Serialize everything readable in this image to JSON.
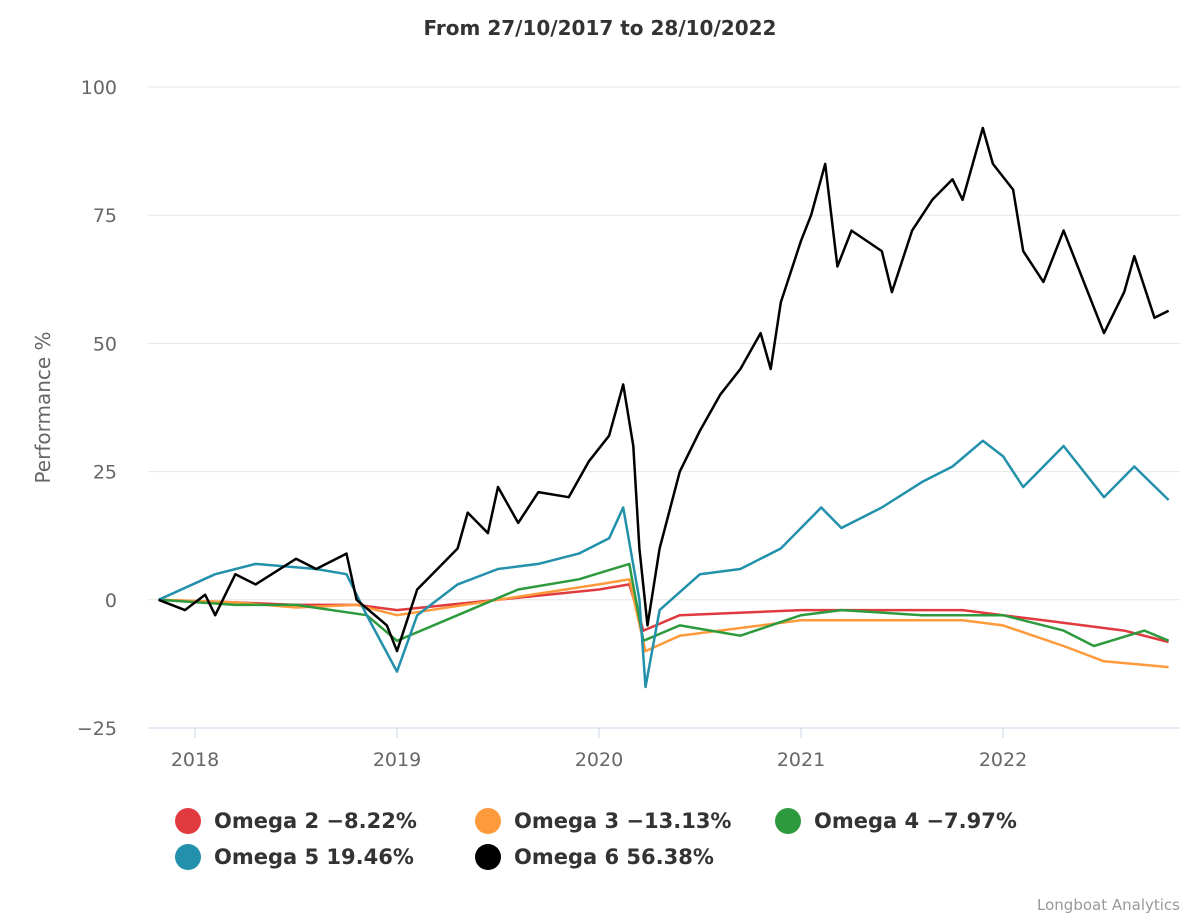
{
  "chart_data": {
    "type": "line",
    "title": "From 27/10/2017 to 28/10/2022",
    "xlabel": "",
    "ylabel": "Performance %",
    "xlim": [
      2017.82,
      2022.82
    ],
    "ylim": [
      -25,
      100
    ],
    "yticks": [
      -25,
      0,
      25,
      50,
      75,
      100
    ],
    "ytick_labels": [
      "−25",
      "0",
      "25",
      "50",
      "75",
      "100"
    ],
    "xticks": [
      2018,
      2019,
      2020,
      2021,
      2022
    ],
    "xtick_labels": [
      "2018",
      "2019",
      "2020",
      "2021",
      "2022"
    ],
    "grid": true,
    "legend_position": "bottom",
    "series": [
      {
        "name": "Omega 2",
        "label": "Omega 2 −8.22%",
        "color": "#e03a3e",
        "points": [
          [
            2017.82,
            0
          ],
          [
            2018.2,
            -0.5
          ],
          [
            2018.5,
            -1
          ],
          [
            2018.8,
            -1
          ],
          [
            2019.0,
            -2
          ],
          [
            2019.5,
            0
          ],
          [
            2020.0,
            2
          ],
          [
            2020.15,
            3
          ],
          [
            2020.22,
            -6
          ],
          [
            2020.4,
            -3
          ],
          [
            2021.0,
            -2
          ],
          [
            2021.8,
            -2
          ],
          [
            2022.2,
            -4
          ],
          [
            2022.6,
            -6
          ],
          [
            2022.82,
            -8.22
          ]
        ]
      },
      {
        "name": "Omega 3",
        "label": "Omega 3 −13.13%",
        "color": "#ff9a3c",
        "points": [
          [
            2017.82,
            0
          ],
          [
            2018.2,
            -0.5
          ],
          [
            2018.5,
            -1.5
          ],
          [
            2018.8,
            -1
          ],
          [
            2019.0,
            -3
          ],
          [
            2019.5,
            0
          ],
          [
            2020.0,
            3
          ],
          [
            2020.15,
            4
          ],
          [
            2020.23,
            -10
          ],
          [
            2020.4,
            -7
          ],
          [
            2021.0,
            -4
          ],
          [
            2021.8,
            -4
          ],
          [
            2022.0,
            -5
          ],
          [
            2022.3,
            -9
          ],
          [
            2022.5,
            -12
          ],
          [
            2022.82,
            -13.13
          ]
        ]
      },
      {
        "name": "Omega 4",
        "label": "Omega 4 −7.97%",
        "color": "#2e9a3e",
        "points": [
          [
            2017.82,
            0
          ],
          [
            2018.2,
            -1
          ],
          [
            2018.5,
            -1
          ],
          [
            2018.85,
            -3
          ],
          [
            2019.0,
            -8
          ],
          [
            2019.3,
            -3
          ],
          [
            2019.6,
            2
          ],
          [
            2019.9,
            4
          ],
          [
            2020.15,
            7
          ],
          [
            2020.22,
            -8
          ],
          [
            2020.4,
            -5
          ],
          [
            2020.7,
            -7
          ],
          [
            2021.0,
            -3
          ],
          [
            2021.2,
            -2
          ],
          [
            2021.6,
            -3
          ],
          [
            2022.0,
            -3
          ],
          [
            2022.3,
            -6
          ],
          [
            2022.45,
            -9
          ],
          [
            2022.7,
            -6
          ],
          [
            2022.82,
            -7.97
          ]
        ]
      },
      {
        "name": "Omega 5",
        "label": "Omega 5 19.46%",
        "color": "#2390ac",
        "points": [
          [
            2017.82,
            0
          ],
          [
            2018.1,
            5
          ],
          [
            2018.3,
            7
          ],
          [
            2018.6,
            6
          ],
          [
            2018.75,
            5
          ],
          [
            2018.85,
            -3
          ],
          [
            2019.0,
            -14
          ],
          [
            2019.1,
            -3
          ],
          [
            2019.3,
            3
          ],
          [
            2019.5,
            6
          ],
          [
            2019.7,
            7
          ],
          [
            2019.9,
            9
          ],
          [
            2020.05,
            12
          ],
          [
            2020.12,
            18
          ],
          [
            2020.2,
            0
          ],
          [
            2020.23,
            -17
          ],
          [
            2020.3,
            -2
          ],
          [
            2020.5,
            5
          ],
          [
            2020.7,
            6
          ],
          [
            2020.9,
            10
          ],
          [
            2021.1,
            18
          ],
          [
            2021.2,
            14
          ],
          [
            2021.4,
            18
          ],
          [
            2021.6,
            23
          ],
          [
            2021.75,
            26
          ],
          [
            2021.9,
            31
          ],
          [
            2022.0,
            28
          ],
          [
            2022.1,
            22
          ],
          [
            2022.3,
            30
          ],
          [
            2022.5,
            20
          ],
          [
            2022.65,
            26
          ],
          [
            2022.82,
            19.46
          ]
        ]
      },
      {
        "name": "Omega 6",
        "label": "Omega 6 56.38%",
        "color": "#000000",
        "points": [
          [
            2017.82,
            0
          ],
          [
            2017.95,
            -2
          ],
          [
            2018.05,
            1
          ],
          [
            2018.1,
            -3
          ],
          [
            2018.2,
            5
          ],
          [
            2018.3,
            3
          ],
          [
            2018.5,
            8
          ],
          [
            2018.6,
            6
          ],
          [
            2018.75,
            9
          ],
          [
            2018.8,
            0
          ],
          [
            2018.95,
            -5
          ],
          [
            2019.0,
            -10
          ],
          [
            2019.1,
            2
          ],
          [
            2019.3,
            10
          ],
          [
            2019.35,
            17
          ],
          [
            2019.45,
            13
          ],
          [
            2019.5,
            22
          ],
          [
            2019.6,
            15
          ],
          [
            2019.7,
            21
          ],
          [
            2019.85,
            20
          ],
          [
            2019.95,
            27
          ],
          [
            2020.05,
            32
          ],
          [
            2020.12,
            42
          ],
          [
            2020.17,
            30
          ],
          [
            2020.2,
            10
          ],
          [
            2020.24,
            -5
          ],
          [
            2020.3,
            10
          ],
          [
            2020.4,
            25
          ],
          [
            2020.5,
            33
          ],
          [
            2020.6,
            40
          ],
          [
            2020.7,
            45
          ],
          [
            2020.8,
            52
          ],
          [
            2020.85,
            45
          ],
          [
            2020.9,
            58
          ],
          [
            2021.0,
            70
          ],
          [
            2021.05,
            75
          ],
          [
            2021.12,
            85
          ],
          [
            2021.18,
            65
          ],
          [
            2021.25,
            72
          ],
          [
            2021.4,
            68
          ],
          [
            2021.45,
            60
          ],
          [
            2021.55,
            72
          ],
          [
            2021.65,
            78
          ],
          [
            2021.75,
            82
          ],
          [
            2021.8,
            78
          ],
          [
            2021.9,
            92
          ],
          [
            2021.95,
            85
          ],
          [
            2022.05,
            80
          ],
          [
            2022.1,
            68
          ],
          [
            2022.2,
            62
          ],
          [
            2022.3,
            72
          ],
          [
            2022.4,
            62
          ],
          [
            2022.5,
            52
          ],
          [
            2022.6,
            60
          ],
          [
            2022.65,
            67
          ],
          [
            2022.75,
            55
          ],
          [
            2022.82,
            56.38
          ]
        ]
      }
    ]
  },
  "credit": "Longboat Analytics"
}
